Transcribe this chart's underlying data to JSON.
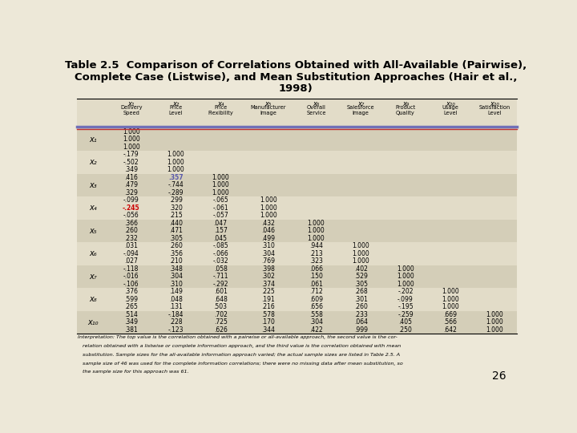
{
  "title_line1": "Table 2.5  Comparison of Correlations Obtained with All-Available (Pairwise),",
  "title_line2": "Complete Case (Listwise), and Mean Substitution Approaches (Hair et al.,",
  "title_line3": "1998)",
  "col_xi": [
    "x₁",
    "x₂",
    "x₄",
    "x₅",
    "x₆",
    "x₇",
    "x₉",
    "x₁₀",
    "x₁₀"
  ],
  "col_sub": [
    "Delivery\nSpeed",
    "Price\nLevel",
    "Price\nFlexibility",
    "Manufacturer\nImage",
    "Overall\nService",
    "Salesforce\nImage",
    "Product\nQuality",
    "Usage\nLevel",
    "Satisfaction\nLevel"
  ],
  "rows": [
    [
      "1.000",
      "",
      "",
      "",
      "",
      "",
      "",
      "",
      ""
    ],
    [
      "1.000",
      "",
      "",
      "",
      "",
      "",
      "",
      "",
      ""
    ],
    [
      "1.000",
      "",
      "",
      "",
      "",
      "",
      "",
      "",
      ""
    ],
    [
      "-.179",
      "1.000",
      "",
      "",
      "",
      "",
      "",
      "",
      ""
    ],
    [
      "-.502",
      "1.000",
      "",
      "",
      "",
      "",
      "",
      "",
      ""
    ],
    [
      ".349",
      "1.000",
      "",
      "",
      "",
      "",
      "",
      "",
      ""
    ],
    [
      ".416",
      ".357",
      "1.000",
      "",
      "",
      "",
      "",
      "",
      ""
    ],
    [
      ".479",
      "-.744",
      "1.000",
      "",
      "",
      "",
      "",
      "",
      ""
    ],
    [
      ".329",
      "-.289",
      "1.000",
      "",
      "",
      "",
      "",
      "",
      ""
    ],
    [
      "-.099",
      ".299",
      "-.065",
      "1.000",
      "",
      "",
      "",
      "",
      ""
    ],
    [
      "-.245",
      ".320",
      "-.061",
      "1.000",
      "",
      "",
      "",
      "",
      ""
    ],
    [
      "-.056",
      ".215",
      "-.057",
      "1.000",
      "",
      "",
      "",
      "",
      ""
    ],
    [
      ".366",
      ".440",
      ".047",
      ".432",
      "1.000",
      "",
      "",
      "",
      ""
    ],
    [
      ".260",
      ".471",
      ".157",
      ".046",
      "1.000",
      "",
      "",
      "",
      ""
    ],
    [
      ".232",
      ".305",
      ".045",
      ".499",
      "1.000",
      "",
      "",
      "",
      ""
    ],
    [
      ".031",
      ".260",
      "-.085",
      ".310",
      ".944",
      "1.000",
      "",
      "",
      ""
    ],
    [
      "-.094",
      ".356",
      "-.066",
      ".304",
      ".213",
      "1.000",
      "",
      "",
      ""
    ],
    [
      ".027",
      ".210",
      "-.032",
      ".769",
      ".323",
      "1.000",
      "",
      "",
      ""
    ],
    [
      "-.118",
      ".348",
      ".058",
      ".398",
      ".066",
      ".402",
      "1.000",
      "",
      ""
    ],
    [
      "-.016",
      ".304",
      "-.711",
      ".302",
      ".150",
      ".529",
      "1.000",
      "",
      ""
    ],
    [
      "-.106",
      ".310",
      "-.292",
      ".374",
      ".061",
      ".305",
      "1.000",
      "",
      ""
    ],
    [
      ".376",
      ".149",
      ".601",
      ".225",
      ".712",
      ".268",
      "-.202",
      "1.000",
      ""
    ],
    [
      ".599",
      ".048",
      ".648",
      ".191",
      ".609",
      ".301",
      "-.099",
      "1.000",
      ""
    ],
    [
      ".265",
      ".131",
      ".503",
      ".216",
      ".656",
      ".260",
      "-.195",
      "1.000",
      ""
    ],
    [
      ".514",
      "-.184",
      ".702",
      ".578",
      ".558",
      ".233",
      "-.259",
      ".669",
      "1.000"
    ],
    [
      ".349",
      ".228",
      ".725",
      ".170",
      ".304",
      ".064",
      ".405",
      ".566",
      "1.000"
    ],
    [
      ".381",
      "-.123",
      ".626",
      ".344",
      ".422",
      ".999",
      ".250",
      ".642",
      "1.000"
    ]
  ],
  "group_labels": [
    "x₁",
    "x₂",
    "x₃",
    "x₄",
    "x₅",
    "x₆",
    "x₇",
    "x₈",
    "x₁₀"
  ],
  "footnote_line1": "Interpretation: The top value is the correlation obtained with a pairwise or all-available approach, the second value is the cor-",
  "footnote_line2": "   relation obtained with a listwise or complete information approach, and the third value is the correlation obtained with mean",
  "footnote_line3": "   substitution. Sample sizes for the all-available information approach varied; the actual sample sizes are listed in Table 2.5. A",
  "footnote_line4": "   sample size of 46 was used for the complete information correlations; there were no missing data after mean substitution, so",
  "footnote_line5": "   the sample size for this approach was 61.",
  "page_number": "26",
  "bg_color": "#ede8d8",
  "table_bg_light": "#e2dcc8",
  "table_bg_dark": "#d4ceb8",
  "header_line_color_purple": "#7070b8",
  "header_line_color_red": "#c03030"
}
